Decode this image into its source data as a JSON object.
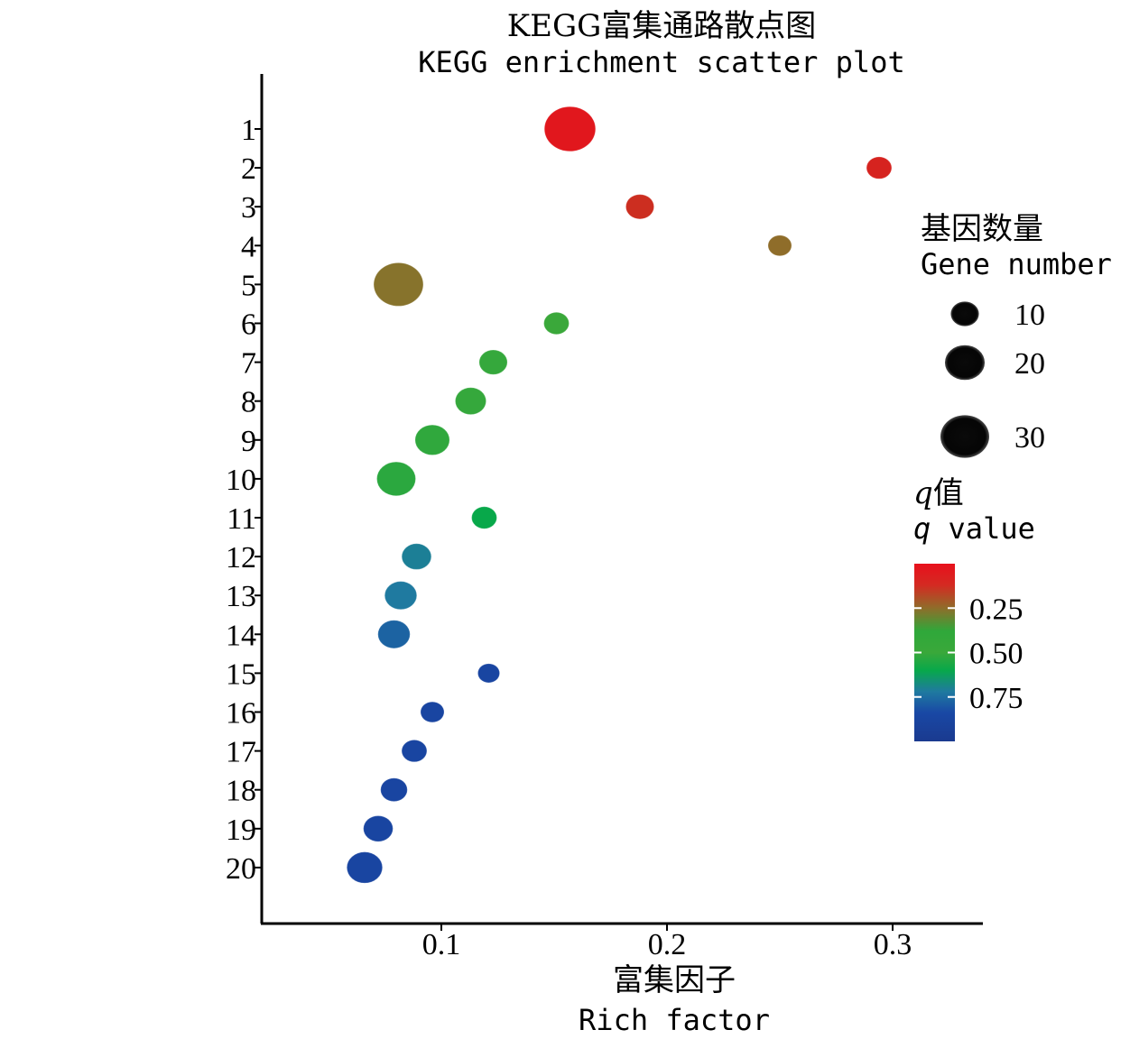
{
  "chart_data": {
    "type": "scatter",
    "title": "KEGG富集通路散点图",
    "subtitle": "KEGG enrichment scatter plot",
    "xlabel": "富集因子",
    "xlabel_en": "Rich factor",
    "ylabel": "",
    "xlim": [
      0.02,
      0.34
    ],
    "xticks": [
      0.1,
      0.2,
      0.3
    ],
    "xtick_labels": [
      "0.1",
      "0.2",
      "0.3"
    ],
    "categories": [
      "1",
      "2",
      "3",
      "4",
      "5",
      "6",
      "7",
      "8",
      "9",
      "10",
      "11",
      "12",
      "13",
      "14",
      "15",
      "16",
      "17",
      "18",
      "19",
      "20"
    ],
    "rich_factor": [
      0.157,
      0.294,
      0.188,
      0.25,
      0.081,
      0.151,
      0.123,
      0.113,
      0.096,
      0.08,
      0.119,
      0.089,
      0.082,
      0.079,
      0.121,
      0.096,
      0.088,
      0.079,
      0.072,
      0.066
    ],
    "gene_number": [
      33,
      8,
      10,
      7,
      31,
      8,
      10,
      12,
      15,
      19,
      8,
      11,
      13,
      13,
      6,
      7,
      8,
      9,
      11,
      16
    ],
    "q_value": [
      0.02,
      0.05,
      0.08,
      0.25,
      0.27,
      0.45,
      0.46,
      0.46,
      0.47,
      0.48,
      0.55,
      0.7,
      0.72,
      0.78,
      0.88,
      0.88,
      0.88,
      0.88,
      0.88,
      0.88
    ],
    "size_legend": {
      "title": "基因数量",
      "title_en": "Gene number",
      "values": [
        10,
        20,
        30
      ],
      "labels": [
        "10",
        "20",
        "30"
      ]
    },
    "color_legend": {
      "title_italic": "q",
      "title_rest": "值",
      "title_en_italic": "q",
      "title_en_rest": " value",
      "range": [
        0,
        1
      ],
      "ticks": [
        0.25,
        0.5,
        0.75
      ],
      "tick_labels": [
        "0.25",
        "0.50",
        "0.75"
      ],
      "colors": [
        "#e8101c",
        "#8f6d2a",
        "#3aa83a",
        "#08a84a",
        "#1f7aa0",
        "#1948a5",
        "#1a3a8f"
      ]
    }
  }
}
